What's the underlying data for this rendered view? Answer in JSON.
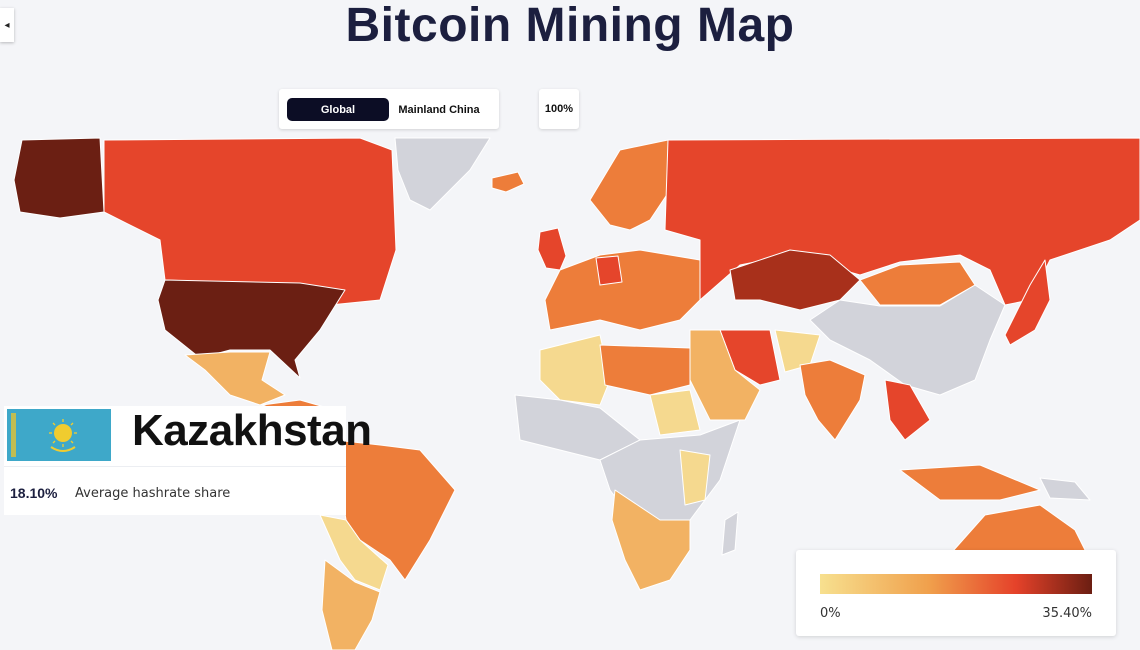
{
  "header": {
    "title": "Bitcoin Mining Map"
  },
  "sidebar_toggle": {
    "glyph": "◂",
    "icon": "collapse-arrow-icon"
  },
  "region_toggle": {
    "options": [
      {
        "label": "Global",
        "active": true
      },
      {
        "label": "Mainland China",
        "active": false
      }
    ]
  },
  "zoom": {
    "label": "100%"
  },
  "selected_country": {
    "name": "Kazakhstan",
    "share_value": "18.10%",
    "share_label": "Average hashrate share",
    "flag_icon": "kazakhstan-flag-icon"
  },
  "legend": {
    "min_label": "0%",
    "max_label": "35.40%",
    "colors": [
      "#f7e08f",
      "#f0a04c",
      "#e5422a",
      "#6b1e12"
    ]
  },
  "palette": {
    "no_data": "#d2d3da",
    "very_low": "#f5d98f",
    "low": "#f2b263",
    "mid": "#ed7d3a",
    "high": "#e5452b",
    "very_high": "#6b1f13",
    "ocean": "#f4f5f8"
  }
}
